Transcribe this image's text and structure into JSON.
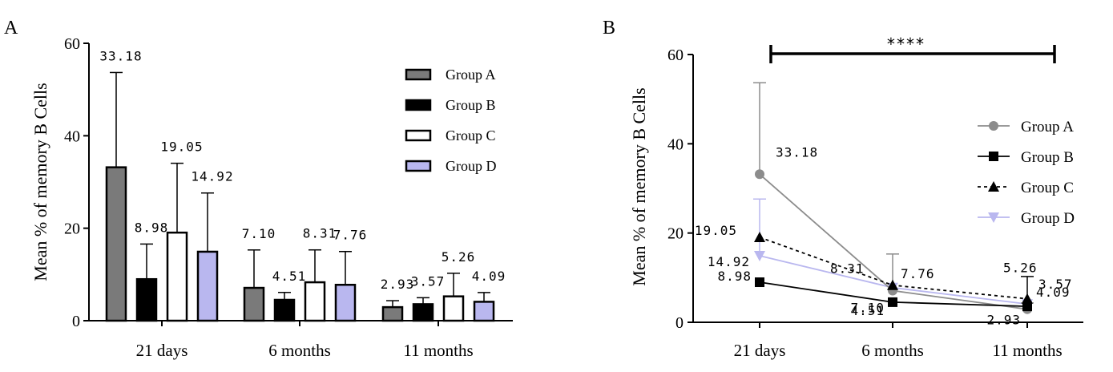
{
  "chart_data": [
    {
      "type": "bar",
      "panel_label": "A",
      "ylabel": "Mean % of memory B Cells",
      "xlabel": "",
      "ylim": [
        0,
        60
      ],
      "yticks": [
        0,
        20,
        40,
        60
      ],
      "categories": [
        "21 days",
        "6 months",
        "11 months"
      ],
      "series": [
        {
          "name": "Group A",
          "color": "#7a7a7a",
          "stroke": "#000000",
          "values": [
            33.18,
            7.1,
            2.93
          ],
          "errors": [
            20.5,
            8.2,
            1.4
          ],
          "labels": [
            "33.18",
            "7.10",
            "2.93"
          ]
        },
        {
          "name": "Group B",
          "color": "#000000",
          "stroke": "#000000",
          "values": [
            8.98,
            4.51,
            3.57
          ],
          "errors": [
            7.6,
            1.6,
            1.4
          ],
          "labels": [
            "8.98",
            "4.51",
            "3.57"
          ]
        },
        {
          "name": "Group C",
          "color": "#ffffff",
          "stroke": "#000000",
          "values": [
            19.05,
            8.31,
            5.26
          ],
          "errors": [
            15.0,
            7.0,
            5.0
          ],
          "labels": [
            "19.05",
            "8.31",
            "5.26"
          ]
        },
        {
          "name": "Group D",
          "color": "#b9b7ef",
          "stroke": "#000000",
          "values": [
            14.92,
            7.76,
            4.09
          ],
          "errors": [
            12.7,
            7.2,
            2.0
          ],
          "labels": [
            "14.92",
            "7.76",
            "4.09"
          ]
        }
      ],
      "legend_position": "top-right"
    },
    {
      "type": "line",
      "panel_label": "B",
      "ylabel": "Mean % of memory B Cells",
      "xlabel": "",
      "ylim": [
        0,
        60
      ],
      "yticks": [
        0,
        20,
        40,
        60
      ],
      "categories": [
        "21 days",
        "6 months",
        "11 months"
      ],
      "significance": "****",
      "series": [
        {
          "name": "Group A",
          "color": "#8c8c8c",
          "marker": "circle",
          "dash": "solid",
          "values": [
            33.18,
            7.1,
            2.93
          ],
          "errors": [
            20.5,
            8.2,
            1.4
          ],
          "labels": [
            "33.18",
            "7.10",
            "2.93"
          ]
        },
        {
          "name": "Group B",
          "color": "#000000",
          "marker": "square",
          "dash": "solid",
          "values": [
            8.98,
            4.51,
            3.57
          ],
          "errors": [
            0,
            0,
            0
          ],
          "labels": [
            "8.98",
            "4.51",
            "3.57"
          ]
        },
        {
          "name": "Group C",
          "color": "#000000",
          "marker": "triangle-up",
          "dash": "dotted",
          "values": [
            19.05,
            8.31,
            5.26
          ],
          "errors": [
            0,
            0,
            5.0
          ],
          "labels": [
            "19.05",
            "8.31",
            "5.26"
          ]
        },
        {
          "name": "Group D",
          "color": "#b9b7ef",
          "marker": "triangle-down",
          "dash": "solid",
          "values": [
            14.92,
            7.76,
            4.09
          ],
          "errors": [
            12.7,
            0,
            0
          ],
          "labels": [
            "14.92",
            "7.76",
            "4.09"
          ]
        }
      ],
      "legend_position": "right"
    }
  ]
}
